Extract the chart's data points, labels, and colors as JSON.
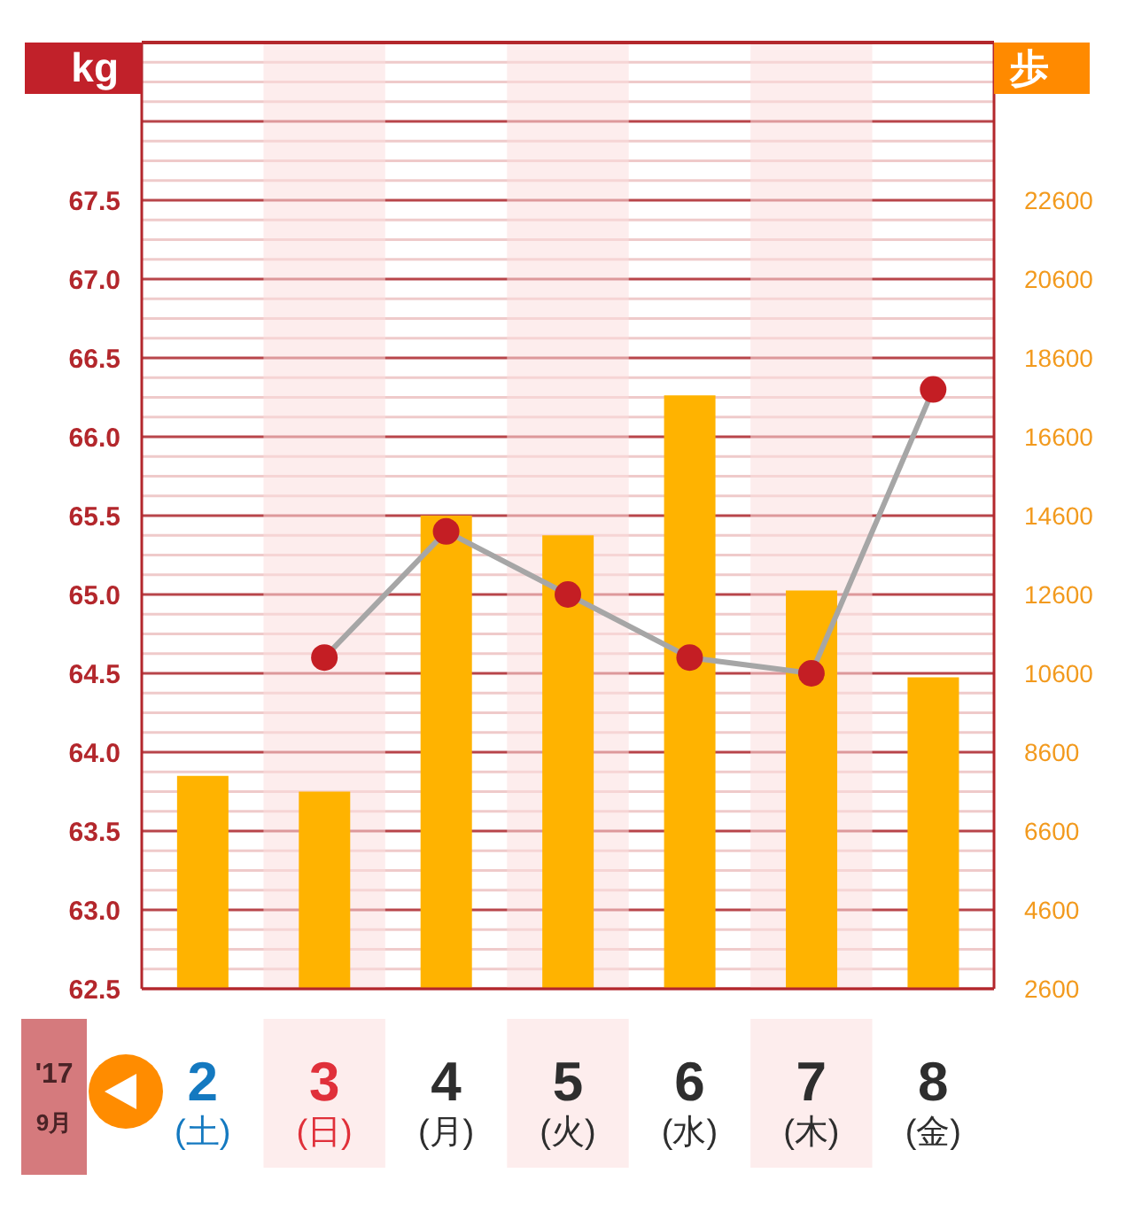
{
  "chart_data": {
    "type": "bar",
    "categories": [
      "2\n(土)",
      "3\n(日)",
      "4\n(月)",
      "5\n(火)",
      "6\n(水)",
      "7\n(木)",
      "8\n(金)"
    ],
    "xlabel": "'17\n9月",
    "ylabel": "kg",
    "y2label": "歩",
    "series": [
      {
        "axis": "y2",
        "color": "#ffb300",
        "values": [
          8000,
          7600,
          14600,
          14100,
          17650,
          12700,
          10500
        ]
      },
      {
        "type": "line",
        "axis": "y",
        "color": "#a6a6a6",
        "colors": [
          null,
          "#c41e24",
          "#c41e24",
          "#c41e24",
          "#c41e24",
          "#c41e24",
          "#c41e24"
        ],
        "values": [
          null,
          64.6,
          65.4,
          65.0,
          64.6,
          64.5,
          66.3
        ]
      }
    ],
    "ylim": [
      62.5,
      68.5
    ],
    "yticks": [
      62.5,
      {
        "value": 62.625,
        "label": null
      },
      {
        "value": 62.75,
        "label": null
      },
      {
        "value": 62.875,
        "label": null
      },
      {
        "value": 63,
        "label": "63.0"
      },
      {
        "value": 63.125,
        "label": null
      },
      {
        "value": 63.25,
        "label": null
      },
      {
        "value": 63.375,
        "label": null
      },
      63.5,
      {
        "value": 63.625,
        "label": null
      },
      {
        "value": 63.75,
        "label": null
      },
      {
        "value": 63.875,
        "label": null
      },
      {
        "value": 64,
        "label": "64.0"
      },
      {
        "value": 64.125,
        "label": null
      },
      {
        "value": 64.25,
        "label": null
      },
      {
        "value": 64.375,
        "label": null
      },
      64.5,
      {
        "value": 64.625,
        "label": null
      },
      {
        "value": 64.75,
        "label": null
      },
      {
        "value": 64.875,
        "label": null
      },
      {
        "value": 65,
        "label": "65.0"
      },
      {
        "value": 65.125,
        "label": null
      },
      {
        "value": 65.25,
        "label": null
      },
      {
        "value": 65.375,
        "label": null
      },
      65.5,
      {
        "value": 65.625,
        "label": null
      },
      {
        "value": 65.75,
        "label": null
      },
      {
        "value": 65.875,
        "label": null
      },
      {
        "value": 66,
        "label": "66.0"
      },
      {
        "value": 66.125,
        "label": null
      },
      {
        "value": 66.25,
        "label": null
      },
      {
        "value": 66.375,
        "label": null
      },
      66.5,
      {
        "value": 66.625,
        "label": null
      },
      {
        "value": 66.75,
        "label": null
      },
      {
        "value": 66.875,
        "label": null
      },
      {
        "value": 67,
        "label": "67.0"
      },
      {
        "value": 67.125,
        "label": null
      },
      {
        "value": 67.25,
        "label": null
      },
      {
        "value": 67.375,
        "label": null
      },
      67.5,
      {
        "value": 67.625,
        "label": null
      },
      {
        "value": 67.75,
        "label": null
      },
      {
        "value": 67.875,
        "label": null
      },
      {
        "value": 68,
        "label": null
      },
      {
        "value": 68.125,
        "label": null
      },
      {
        "value": 68.25,
        "label": null
      },
      {
        "value": 68.375,
        "label": null
      }
    ],
    "y2lim": [
      2600,
      26600
    ],
    "y2ticks": [
      2600,
      4600,
      6600,
      8600,
      10600,
      12600,
      14600,
      16600,
      18600,
      20600,
      22600
    ],
    "bands": [
      {
        "axis": "x",
        "from": "3\n(日)",
        "to": "3\n(日)",
        "color": "#fcdede"
      },
      {
        "axis": "x",
        "from": "5\n(火)",
        "to": "5\n(火)",
        "color": "#fcdede"
      },
      {
        "axis": "x",
        "from": "7\n(木)",
        "to": "7\n(木)",
        "color": "#fcdede"
      }
    ],
    "grid": "y",
    "marker": "circle",
    "line_style": "solid"
  }
}
